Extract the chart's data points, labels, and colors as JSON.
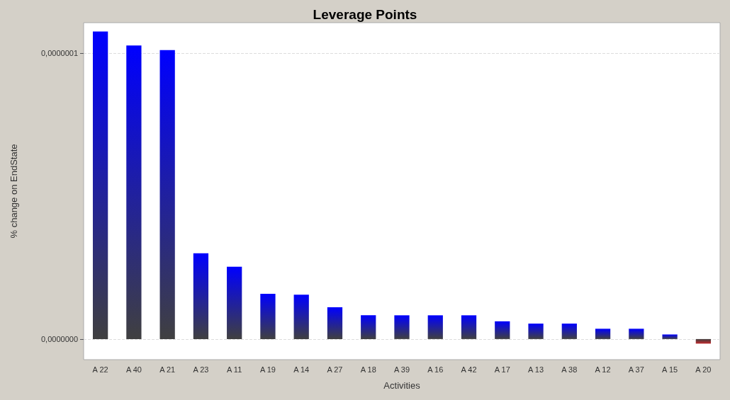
{
  "chart_data": {
    "type": "bar",
    "title": "Leverage Points",
    "xlabel": "Activities",
    "ylabel": "% change on EndState",
    "categories": [
      "A 22",
      "A 40",
      "A 21",
      "A 23",
      "A 11",
      "A 19",
      "A 14",
      "A 27",
      "A 18",
      "A 39",
      "A 16",
      "A 42",
      "A 17",
      "A 13",
      "A 38",
      "A 12",
      "A 37",
      "A 15",
      "A 20"
    ],
    "values": [
      1.075e-07,
      1.026e-07,
      1.01e-07,
      3e-08,
      2.53e-08,
      1.58e-08,
      1.55e-08,
      1.11e-08,
      8.3e-09,
      8.3e-09,
      8.3e-09,
      8.3e-09,
      6.2e-09,
      5.4e-09,
      5.4e-09,
      3.6e-09,
      3.6e-09,
      1.6e-09,
      -1.6e-09
    ],
    "colors": [
      "#0000ff",
      "#0000ff",
      "#0000ff",
      "#0000ff",
      "#0000ff",
      "#0000ff",
      "#0000ff",
      "#0000ff",
      "#0000ff",
      "#0000ff",
      "#0000ff",
      "#0000ff",
      "#0000ff",
      "#0000ff",
      "#0000ff",
      "#0000ff",
      "#0000ff",
      "#0000ff",
      "#c0282c"
    ],
    "ylim": [
      -7.2e-09,
      1.106e-07
    ],
    "yticks": [
      {
        "value": 0,
        "label": "0,0000000"
      },
      {
        "value": 1e-07,
        "label": "0,0000001"
      }
    ],
    "grid": "y"
  }
}
